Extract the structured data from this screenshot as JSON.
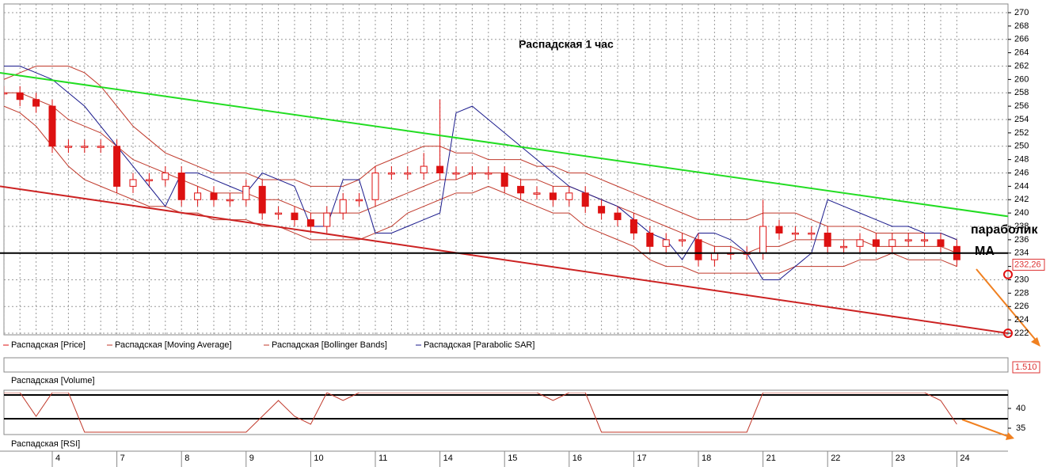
{
  "chart_data": {
    "type": "candlestick",
    "title": "Распадская    1 час",
    "name": "Распадская [Price]",
    "color": "#dd1111",
    "categories": [
      null,
      null,
      null,
      "4",
      null,
      null,
      null,
      "7",
      null,
      null,
      null,
      "8",
      null,
      null,
      null,
      "9",
      null,
      null,
      null,
      "10",
      null,
      null,
      null,
      "11",
      null,
      null,
      null,
      "14",
      null,
      null,
      null,
      "15",
      null,
      null,
      null,
      "16",
      null,
      null,
      null,
      "17",
      null,
      null,
      null,
      "18",
      null,
      null,
      null,
      "21",
      null,
      null,
      null,
      "22",
      null,
      null,
      null,
      "23",
      null,
      null,
      null,
      "24"
    ],
    "open": [
      258,
      258,
      257,
      256,
      250,
      250,
      250,
      250,
      244,
      245,
      245,
      246,
      242,
      243,
      242,
      242,
      244,
      240,
      240,
      239,
      238,
      240,
      242,
      242,
      246,
      246,
      246,
      247,
      246,
      246,
      246,
      246,
      244,
      243,
      243,
      242,
      243,
      241,
      240,
      239,
      237,
      235,
      236,
      236,
      233,
      234,
      234,
      234,
      238,
      237,
      237,
      237,
      235,
      235,
      236,
      235,
      236,
      236,
      236,
      235
    ],
    "high": [
      259,
      259,
      258,
      257,
      251,
      251,
      251,
      251,
      246,
      246,
      247,
      247,
      244,
      244,
      243,
      245,
      245,
      241,
      241,
      240,
      241,
      243,
      243,
      247,
      247,
      247,
      249,
      257,
      247,
      247,
      247,
      247,
      245,
      244,
      244,
      244,
      244,
      242,
      241,
      240,
      238,
      237,
      237,
      237,
      235,
      235,
      235,
      242,
      239,
      238,
      238,
      238,
      236,
      237,
      237,
      237,
      237,
      237,
      237,
      236
    ],
    "low": [
      257,
      256,
      255,
      249,
      249,
      249,
      249,
      243,
      243,
      244,
      244,
      241,
      241,
      241,
      241,
      241,
      239,
      239,
      238,
      237,
      237,
      239,
      241,
      241,
      245,
      245,
      245,
      245,
      245,
      245,
      245,
      243,
      242,
      242,
      241,
      241,
      240,
      239,
      238,
      236,
      234,
      234,
      235,
      232,
      232,
      233,
      233,
      233,
      236,
      236,
      236,
      234,
      234,
      234,
      234,
      234,
      235,
      235,
      234,
      232
    ],
    "close": [
      258,
      257,
      256,
      250,
      250,
      250,
      250,
      244,
      245,
      245,
      246,
      242,
      243,
      242,
      242,
      244,
      240,
      240,
      239,
      238,
      240,
      242,
      242,
      246,
      246,
      246,
      247,
      246,
      246,
      246,
      246,
      244,
      243,
      243,
      242,
      243,
      241,
      240,
      239,
      237,
      235,
      236,
      236,
      233,
      234,
      234,
      234,
      238,
      237,
      237,
      237,
      235,
      235,
      236,
      235,
      236,
      236,
      236,
      235,
      233
    ],
    "series": [
      {
        "name": "Распадская [Moving Average]",
        "color": "#c0392b",
        "values": [
          258,
          258,
          257,
          256,
          254,
          253,
          252,
          250,
          248,
          247,
          246,
          245,
          244,
          243,
          243,
          243,
          242,
          242,
          241,
          240,
          240,
          240,
          240,
          241,
          242,
          243,
          244,
          245,
          245,
          246,
          246,
          246,
          245,
          245,
          244,
          244,
          243,
          242,
          241,
          240,
          239,
          238,
          237,
          236,
          235,
          235,
          234,
          235,
          235,
          236,
          236,
          236,
          236,
          236,
          235,
          235,
          235,
          235,
          235,
          234
        ]
      },
      {
        "name": "Распадская [Bollinger Bands]",
        "color": "#c0392b",
        "upper": [
          260,
          261,
          262,
          262,
          262,
          261,
          259,
          256,
          253,
          251,
          249,
          248,
          247,
          246,
          246,
          246,
          245,
          245,
          245,
          244,
          244,
          244,
          245,
          247,
          248,
          249,
          250,
          250,
          249,
          249,
          248,
          248,
          248,
          247,
          247,
          246,
          246,
          245,
          244,
          243,
          242,
          241,
          240,
          239,
          239,
          239,
          239,
          240,
          240,
          240,
          239,
          238,
          238,
          238,
          237,
          237,
          237,
          237,
          237,
          236
        ],
        "lower": [
          256,
          255,
          253,
          250,
          247,
          245,
          244,
          243,
          242,
          241,
          241,
          240,
          240,
          239,
          239,
          239,
          238,
          238,
          237,
          236,
          236,
          236,
          236,
          237,
          238,
          240,
          241,
          242,
          243,
          243,
          244,
          243,
          242,
          241,
          240,
          240,
          238,
          237,
          236,
          235,
          233,
          232,
          232,
          231,
          231,
          231,
          231,
          231,
          231,
          232,
          232,
          232,
          232,
          233,
          233,
          234,
          233,
          233,
          233,
          232
        ]
      },
      {
        "name": "Распадская [Parabolic SAR]",
        "color": "#1a1a8c",
        "values": [
          262,
          262,
          261,
          260,
          258,
          256,
          253,
          250,
          247,
          244,
          241,
          246,
          246,
          245,
          244,
          243,
          246,
          245,
          244,
          238,
          238,
          245,
          245,
          237,
          237,
          238,
          239,
          240,
          255,
          256,
          254,
          252,
          250,
          248,
          246,
          244,
          243,
          242,
          241,
          239,
          237,
          236,
          233,
          237,
          237,
          236,
          234,
          230,
          230,
          232,
          234,
          242,
          241,
          240,
          239,
          238,
          238,
          237,
          237,
          236
        ]
      }
    ],
    "trend_lines": [
      {
        "color": "#22dd22",
        "values": [
          261,
          239.5
        ]
      },
      {
        "color": "#cc2222",
        "values": [
          244,
          222
        ]
      },
      {
        "color": "#000000",
        "values": [
          234,
          234
        ]
      }
    ],
    "ylim": [
      222,
      270
    ],
    "yticks": [
      222,
      224,
      226,
      228,
      230,
      232,
      234,
      236,
      238,
      240,
      242,
      244,
      246,
      248,
      250,
      252,
      254,
      256,
      258,
      260,
      262,
      264,
      266,
      268,
      270
    ],
    "grid": true,
    "last_price": {
      "value": 232.26,
      "label": "232,26"
    },
    "markers": [
      230.8,
      222
    ],
    "annotations": [
      "параболик",
      "MA"
    ],
    "volume": {
      "name": "Распадская [Volume]",
      "last": {
        "value": 1.51,
        "label": "1.510"
      }
    },
    "rsi": {
      "name": "Распадская [RSI]",
      "color": "#c0392b",
      "values": [
        44,
        44,
        38,
        44,
        44,
        34,
        34,
        34,
        34,
        34,
        34,
        34,
        34,
        34,
        34,
        34,
        38,
        42,
        38,
        36,
        44,
        42,
        44,
        44,
        44,
        44,
        44,
        44,
        44,
        44,
        44,
        44,
        44,
        44,
        42,
        44,
        44,
        34,
        34,
        34,
        34,
        34,
        34,
        34,
        34,
        34,
        34,
        44,
        44,
        44,
        44,
        44,
        44,
        44,
        44,
        44,
        44,
        44,
        42,
        36
      ],
      "ylim": [
        33.6,
        44
      ],
      "yticks": [
        35,
        40
      ],
      "levels": [
        43.4,
        37.4
      ]
    }
  }
}
